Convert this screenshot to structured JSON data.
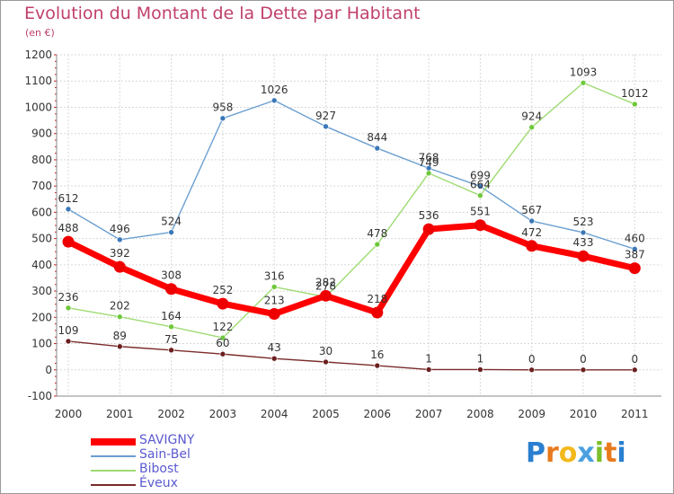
{
  "header": {
    "title": "Evolution du Montant de la Dette par Habitant",
    "subtitle": "(en €)"
  },
  "brand": {
    "text": "Proxiti",
    "letters": [
      "P",
      "r",
      "o",
      "x",
      "i",
      "t",
      "i"
    ],
    "colors": [
      "#2a7fd0",
      "#e87a1c",
      "#f2b81c",
      "#4aa0e0",
      "#7bbf2a",
      "#e87a1c",
      "#2a7fd0"
    ]
  },
  "chart_data": {
    "type": "line",
    "title": "Evolution du Montant de la Dette par Habitant",
    "subtitle": "(en €)",
    "xlabel": "",
    "ylabel": "",
    "ylim": [
      -100,
      1200
    ],
    "yticks": [
      -100,
      0,
      100,
      200,
      300,
      400,
      500,
      600,
      700,
      800,
      900,
      1000,
      1100,
      1200
    ],
    "ytick_labels": [
      "-100",
      "0",
      "100",
      "200",
      "300",
      "400",
      "500",
      "600",
      "700",
      "800",
      "900",
      "1000",
      "1100",
      "1200"
    ],
    "categories": [
      "2000",
      "2001",
      "2002",
      "2003",
      "2004",
      "2005",
      "2006",
      "2007",
      "2008",
      "2009",
      "2010",
      "2011"
    ],
    "grid": true,
    "legend_position": "bottom-left",
    "series": [
      {
        "name": "Sain-Bel",
        "color": "#6a9fd0",
        "marker": "#3a78b8",
        "values": [
          612,
          496,
          524,
          958,
          1026,
          927,
          844,
          768,
          699,
          567,
          523,
          460
        ],
        "labels": [
          "612",
          "496",
          "524",
          "958",
          "1026",
          "927",
          "844",
          "768",
          "699",
          "567",
          "523",
          "460"
        ]
      },
      {
        "name": "Bibost",
        "color": "#9edb73",
        "marker": "#6ec83a",
        "values": [
          236,
          202,
          164,
          122,
          316,
          278,
          478,
          749,
          664,
          924,
          1093,
          1012
        ],
        "labels": [
          "236",
          "202",
          "164",
          "122",
          "316",
          "278",
          "478",
          "749",
          "664",
          "924",
          "1093",
          "1012"
        ]
      },
      {
        "name": "Éveux",
        "color": "#7a2a2a",
        "marker": "#6b1f1f",
        "values": [
          109,
          89,
          75,
          60,
          43,
          30,
          16,
          1,
          1,
          0,
          0,
          0
        ],
        "labels": [
          "109",
          "89",
          "75",
          "60",
          "43",
          "30",
          "16",
          "1",
          "1",
          "0",
          "0",
          "0"
        ]
      },
      {
        "name": "SAVIGNY",
        "color": "#ff0000",
        "marker": "#ee0000",
        "values": [
          488,
          392,
          308,
          252,
          213,
          282,
          218,
          536,
          551,
          472,
          433,
          387
        ],
        "labels": [
          "488",
          "392",
          "308",
          "252",
          "213",
          "282",
          "218",
          "536",
          "551",
          "472",
          "433",
          "387"
        ]
      }
    ],
    "legend": [
      {
        "name": "SAVIGNY",
        "color": "#ff0000"
      },
      {
        "name": "Sain-Bel",
        "color": "#6a9fd0"
      },
      {
        "name": "Bibost",
        "color": "#9edb73"
      },
      {
        "name": "Éveux",
        "color": "#7a2a2a"
      }
    ]
  }
}
